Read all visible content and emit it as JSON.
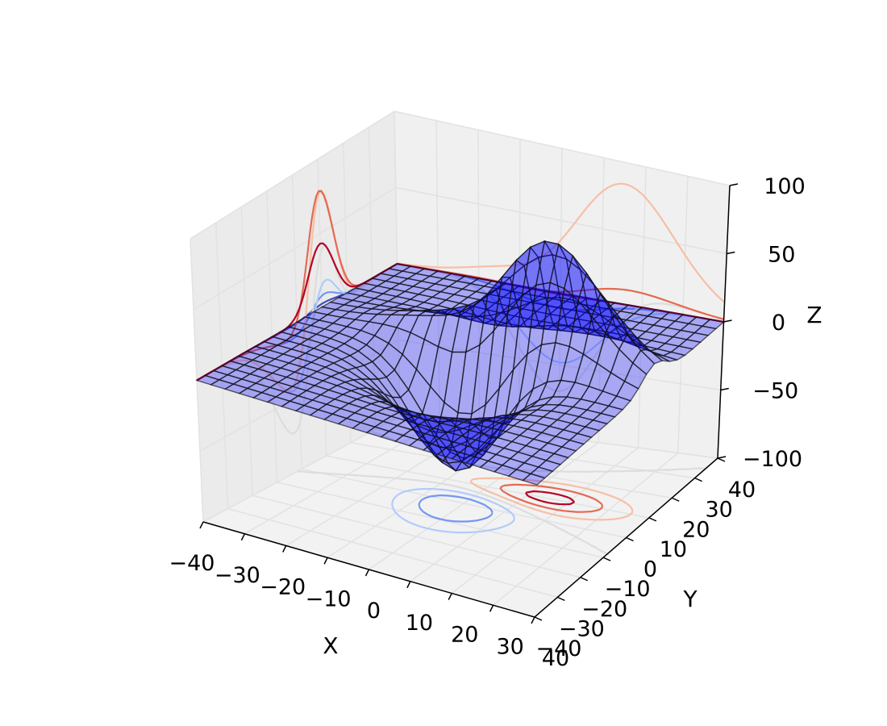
{
  "chart_data": {
    "type": "surface3d",
    "title": "",
    "xlabel": "X",
    "ylabel": "Y",
    "zlabel": "Z",
    "xlim": [
      -40,
      40
    ],
    "ylim": [
      -40,
      40
    ],
    "zlim": [
      -100,
      100
    ],
    "x_ticks": [
      "−40",
      "−30",
      "−20",
      "−10",
      "0",
      "10",
      "20",
      "30",
      "40"
    ],
    "y_ticks": [
      "−40",
      "−30",
      "−20",
      "−10",
      "0",
      "10",
      "20",
      "30",
      "40"
    ],
    "z_ticks": [
      "−100",
      "−50",
      "0",
      "50",
      "100"
    ],
    "grid": true,
    "surface_color": "#0000ff",
    "surface_opacity": 0.3,
    "wire_color": "#111111",
    "contour_levels": [
      -75,
      -50,
      -25,
      0,
      25,
      50,
      75
    ],
    "contour_colormap": "coolwarm",
    "colormap_stops": [
      "#3b4cc0",
      "#7396f5",
      "#b0cbfc",
      "#dcdddd",
      "#f6bfa6",
      "#e36a53",
      "#b40426"
    ],
    "projections": [
      "z offset -100 (floor)",
      "x offset -40 (left wall)",
      "y offset 40 (back wall)"
    ]
  }
}
